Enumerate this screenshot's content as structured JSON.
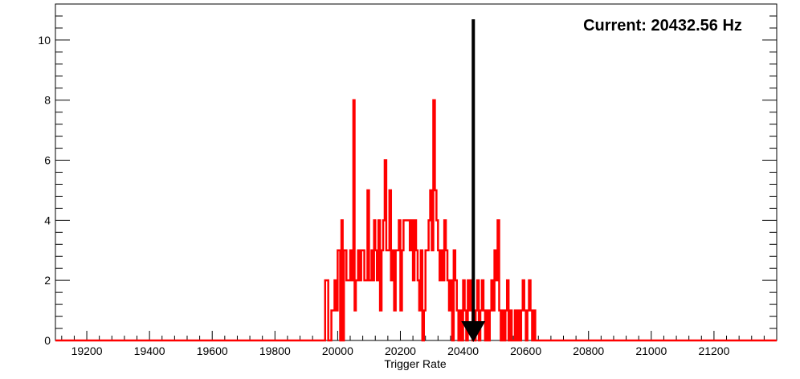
{
  "chart_data": {
    "type": "histogram",
    "title": "",
    "xlabel": "Trigger Rate",
    "ylabel": "",
    "xlim": [
      19100,
      21400
    ],
    "ylim": [
      0,
      11.2
    ],
    "x_ticks": [
      19200,
      19400,
      19600,
      19800,
      20000,
      20200,
      20400,
      20600,
      20800,
      21000,
      21200
    ],
    "y_ticks": [
      0,
      2,
      4,
      6,
      8,
      10
    ],
    "line_color": "#ff0000",
    "bins": [
      [
        19100,
        0
      ],
      [
        19960,
        2
      ],
      [
        19970,
        0
      ],
      [
        19980,
        1
      ],
      [
        19990,
        2
      ],
      [
        19995,
        1
      ],
      [
        20000,
        3
      ],
      [
        20008,
        0
      ],
      [
        20012,
        4
      ],
      [
        20016,
        0
      ],
      [
        20020,
        3
      ],
      [
        20028,
        2
      ],
      [
        20040,
        3
      ],
      [
        20045,
        2
      ],
      [
        20050,
        8
      ],
      [
        20054,
        1
      ],
      [
        20058,
        2
      ],
      [
        20065,
        3
      ],
      [
        20070,
        2
      ],
      [
        20075,
        3
      ],
      [
        20085,
        2
      ],
      [
        20095,
        5
      ],
      [
        20100,
        2
      ],
      [
        20108,
        3
      ],
      [
        20112,
        2
      ],
      [
        20116,
        4
      ],
      [
        20120,
        3
      ],
      [
        20125,
        2
      ],
      [
        20130,
        4
      ],
      [
        20135,
        1
      ],
      [
        20140,
        3
      ],
      [
        20145,
        4
      ],
      [
        20150,
        6
      ],
      [
        20155,
        3
      ],
      [
        20165,
        5
      ],
      [
        20170,
        2
      ],
      [
        20175,
        3
      ],
      [
        20180,
        1
      ],
      [
        20185,
        3
      ],
      [
        20195,
        4
      ],
      [
        20200,
        1
      ],
      [
        20205,
        3
      ],
      [
        20210,
        4
      ],
      [
        20230,
        3
      ],
      [
        20235,
        4
      ],
      [
        20240,
        2
      ],
      [
        20245,
        4
      ],
      [
        20250,
        3
      ],
      [
        20255,
        2
      ],
      [
        20260,
        1
      ],
      [
        20265,
        3
      ],
      [
        20270,
        0
      ],
      [
        20275,
        1
      ],
      [
        20280,
        3
      ],
      [
        20290,
        4
      ],
      [
        20295,
        5
      ],
      [
        20300,
        3
      ],
      [
        20305,
        8
      ],
      [
        20310,
        5
      ],
      [
        20315,
        4
      ],
      [
        20320,
        3
      ],
      [
        20325,
        2
      ],
      [
        20330,
        3
      ],
      [
        20335,
        2
      ],
      [
        20340,
        4
      ],
      [
        20345,
        3
      ],
      [
        20350,
        2
      ],
      [
        20355,
        1
      ],
      [
        20360,
        2
      ],
      [
        20365,
        0
      ],
      [
        20370,
        3
      ],
      [
        20375,
        2
      ],
      [
        20380,
        1
      ],
      [
        20385,
        0
      ],
      [
        20390,
        1
      ],
      [
        20395,
        0
      ],
      [
        20400,
        2
      ],
      [
        20405,
        1
      ],
      [
        20410,
        0
      ],
      [
        20415,
        2
      ],
      [
        20420,
        1
      ],
      [
        20425,
        2
      ],
      [
        20430,
        0
      ],
      [
        20440,
        1
      ],
      [
        20445,
        2
      ],
      [
        20450,
        0
      ],
      [
        20455,
        1
      ],
      [
        20460,
        2
      ],
      [
        20465,
        1
      ],
      [
        20470,
        0
      ],
      [
        20475,
        1
      ],
      [
        20480,
        0
      ],
      [
        20485,
        1
      ],
      [
        20490,
        2
      ],
      [
        20495,
        1
      ],
      [
        20500,
        3
      ],
      [
        20505,
        2
      ],
      [
        20510,
        4
      ],
      [
        20515,
        1
      ],
      [
        20520,
        0
      ],
      [
        20525,
        1
      ],
      [
        20530,
        0
      ],
      [
        20535,
        1
      ],
      [
        20540,
        2
      ],
      [
        20545,
        0
      ],
      [
        20550,
        1
      ],
      [
        20555,
        0
      ],
      [
        20565,
        1
      ],
      [
        20570,
        0
      ],
      [
        20575,
        1
      ],
      [
        20580,
        0
      ],
      [
        20585,
        1
      ],
      [
        20590,
        2
      ],
      [
        20595,
        1
      ],
      [
        20600,
        0
      ],
      [
        20605,
        1
      ],
      [
        20610,
        2
      ],
      [
        20615,
        1
      ],
      [
        20620,
        0
      ],
      [
        20625,
        1
      ],
      [
        20630,
        0
      ],
      [
        20730,
        0
      ]
    ],
    "annotation_text": "Current: 20432.56 Hz",
    "current_value": 20432.56,
    "arrow_color": "#000000"
  }
}
